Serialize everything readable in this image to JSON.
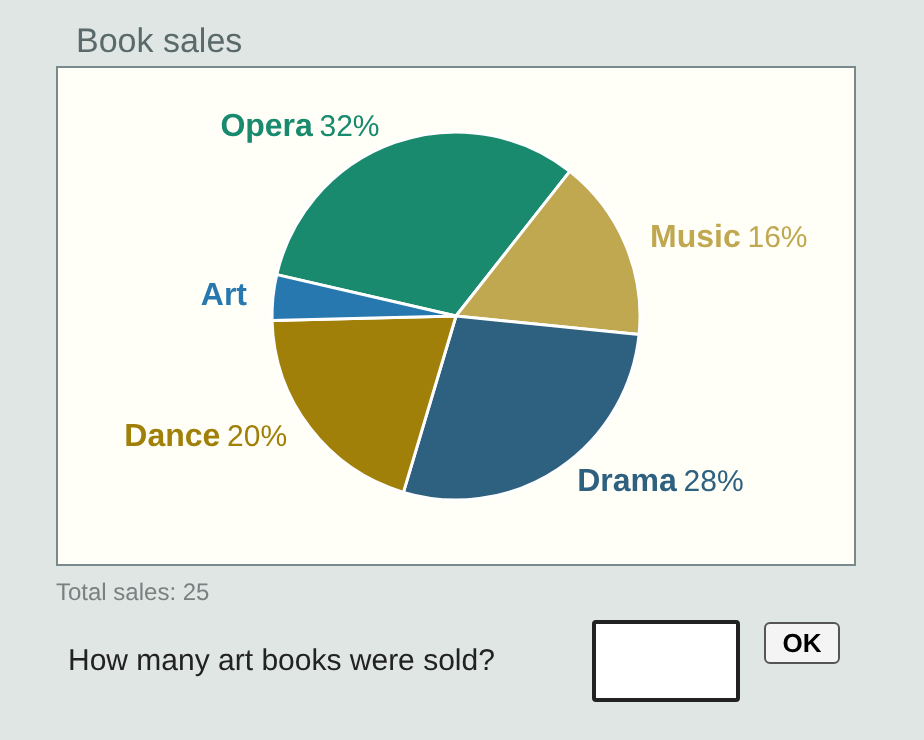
{
  "chart_data": {
    "type": "pie",
    "title": "Book sales",
    "categories": [
      "Opera",
      "Music",
      "Drama",
      "Dance",
      "Art"
    ],
    "values": [
      32,
      16,
      28,
      20,
      4
    ],
    "value_labels": [
      "32%",
      "16%",
      "28%",
      "20%",
      null
    ],
    "colors": [
      "#1a8a6e",
      "#c0a850",
      "#2e6080",
      "#a08008",
      "#2878b0"
    ],
    "legend": false,
    "annotations": [
      "Total sales: 25",
      "How many art books were sold?",
      "OK"
    ]
  }
}
